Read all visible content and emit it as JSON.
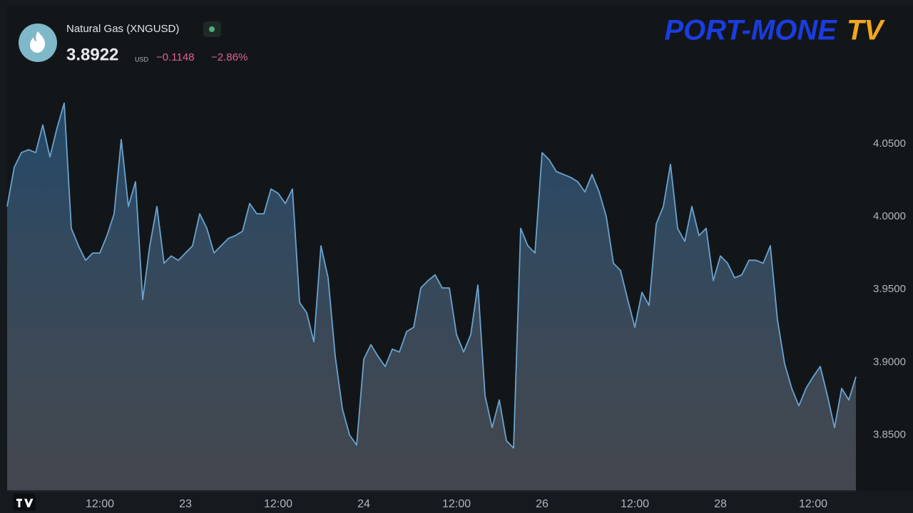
{
  "chart_data": {
    "type": "area",
    "title": "Natural Gas (XNGUSD)",
    "price": "3.8922",
    "currency": "USD",
    "change": "−0.1148",
    "change_percent": "−2.86%",
    "brand": {
      "name": "PORT-MONE",
      "suffix": "TV"
    },
    "categories": [
      null,
      null,
      null,
      null,
      null,
      null,
      null,
      null,
      null,
      null,
      null,
      null,
      null,
      "12:00",
      null,
      null,
      null,
      null,
      null,
      null,
      null,
      null,
      null,
      null,
      null,
      "23",
      null,
      null,
      null,
      null,
      null,
      null,
      null,
      null,
      null,
      null,
      null,
      null,
      "12:00",
      null,
      null,
      null,
      null,
      null,
      null,
      null,
      null,
      null,
      null,
      null,
      "24",
      null,
      null,
      null,
      null,
      null,
      null,
      null,
      null,
      null,
      null,
      null,
      null,
      "12:00",
      null,
      null,
      null,
      null,
      null,
      null,
      null,
      null,
      null,
      null,
      null,
      "26",
      null,
      null,
      null,
      null,
      null,
      null,
      null,
      null,
      null,
      null,
      null,
      null,
      "12:00",
      null,
      null,
      null,
      null,
      null,
      null,
      null,
      null,
      null,
      null,
      null,
      "28",
      null,
      null,
      null,
      null,
      null,
      null,
      null,
      null,
      null,
      null,
      null,
      null,
      "12:00",
      null,
      null,
      null,
      null,
      null,
      null
    ],
    "series": [
      {
        "name": "XNGUSD",
        "color": "#6aa3cf",
        "values": [
          4.007,
          4.034,
          4.044,
          4.046,
          4.044,
          4.063,
          4.041,
          4.061,
          4.078,
          3.992,
          3.98,
          3.97,
          3.975,
          3.975,
          3.987,
          4.002,
          4.053,
          4.007,
          4.024,
          3.943,
          3.98,
          4.007,
          3.968,
          3.973,
          3.97,
          3.975,
          3.98,
          4.002,
          3.992,
          3.975,
          3.98,
          3.985,
          3.987,
          3.99,
          4.009,
          4.002,
          4.002,
          4.019,
          4.016,
          4.009,
          4.019,
          3.941,
          3.934,
          3.914,
          3.98,
          3.958,
          3.904,
          3.868,
          3.85,
          3.843,
          3.902,
          3.912,
          3.904,
          3.897,
          3.909,
          3.907,
          3.921,
          3.924,
          3.951,
          3.956,
          3.96,
          3.951,
          3.951,
          3.919,
          3.907,
          3.919,
          3.953,
          3.877,
          3.855,
          3.874,
          3.846,
          3.841,
          3.992,
          3.98,
          3.975,
          4.044,
          4.039,
          4.031,
          4.029,
          4.027,
          4.024,
          4.017,
          4.029,
          4.017,
          4.0,
          3.968,
          3.963,
          3.943,
          3.924,
          3.948,
          3.939,
          3.995,
          4.007,
          4.036,
          3.992,
          3.983,
          4.007,
          3.987,
          3.992,
          3.956,
          3.973,
          3.968,
          3.958,
          3.96,
          3.97,
          3.97,
          3.968,
          3.98,
          3.929,
          3.899,
          3.882,
          3.87,
          3.882,
          3.89,
          3.897,
          3.877,
          3.855,
          3.882,
          3.874,
          3.89
        ]
      }
    ],
    "ylim": [
      3.812,
      4.144
    ],
    "yticks": [
      {
        "value": 3.85,
        "label": "3.8500"
      },
      {
        "value": 3.9,
        "label": "3.9000"
      },
      {
        "value": 3.95,
        "label": "3.9500"
      },
      {
        "value": 4.0,
        "label": "4.0000"
      },
      {
        "value": 4.05,
        "label": "4.0500"
      }
    ],
    "grid": false
  }
}
